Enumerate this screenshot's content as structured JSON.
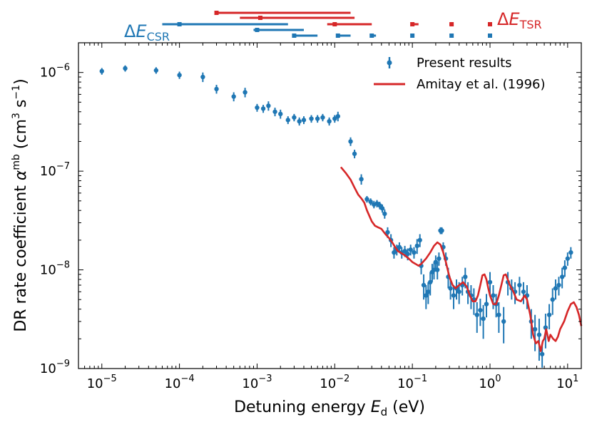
{
  "chart_data": {
    "type": "scatter",
    "xlabel": {
      "prefix": "Detuning energy ",
      "sym": "E",
      "sub": "d",
      "suffix": " (eV)"
    },
    "ylabel": {
      "prefix": "DR rate coefficient ",
      "sym": "α",
      "sup": "mb",
      "units_open": " (cm",
      "units_e1": "3",
      "units_mid": " s",
      "units_e2": "−1",
      "units_close": ")"
    },
    "x_scale": "log",
    "y_scale": "log",
    "xlim": [
      5e-06,
      15
    ],
    "ylim": [
      1e-09,
      2e-06
    ],
    "x_ticks": [
      {
        "value": 1e-05,
        "base": "10",
        "exp": "−5"
      },
      {
        "value": 0.0001,
        "base": "10",
        "exp": "−4"
      },
      {
        "value": 0.001,
        "base": "10",
        "exp": "−3"
      },
      {
        "value": 0.01,
        "base": "10",
        "exp": "−2"
      },
      {
        "value": 0.1,
        "base": "10",
        "exp": "−1"
      },
      {
        "value": 1,
        "base": "10",
        "exp": "0"
      },
      {
        "value": 10,
        "base": "10",
        "exp": "1"
      }
    ],
    "y_ticks": [
      {
        "value": 1e-09,
        "base": "10",
        "exp": "−9"
      },
      {
        "value": 1e-08,
        "base": "10",
        "exp": "−8"
      },
      {
        "value": 1e-07,
        "base": "10",
        "exp": "−7"
      },
      {
        "value": 1e-06,
        "base": "10",
        "exp": "−6"
      }
    ],
    "legend": {
      "position": "top-right",
      "entries": [
        "Present results",
        "Amitay et al. (1996)"
      ]
    },
    "resolution_labels": {
      "csr": {
        "prefix": "Δ",
        "sym": "E",
        "sub": "CSR",
        "color": "#1f77b4"
      },
      "tsr": {
        "prefix": "Δ",
        "sym": "E",
        "sub": "TSR",
        "color": "#d62728"
      }
    },
    "resolution_bars": {
      "tsr": [
        {
          "center": 0.0003,
          "lo": 0.0003,
          "hi": 0.016
        },
        {
          "center": 0.0011,
          "lo": 0.0006,
          "hi": 0.018
        },
        {
          "center": 0.01,
          "lo": 0.008,
          "hi": 0.03
        },
        {
          "center": 0.1,
          "lo": 0.095,
          "hi": 0.12
        },
        {
          "center": 0.32,
          "lo": 0.3,
          "hi": 0.34
        },
        {
          "center": 1.0,
          "lo": 0.97,
          "hi": 1.03
        }
      ],
      "csr": [
        {
          "center": 0.0001,
          "lo": 6e-05,
          "hi": 0.0025
        },
        {
          "center": 0.001,
          "lo": 0.0009,
          "hi": 0.004
        },
        {
          "center": 0.003,
          "lo": 0.0029,
          "hi": 0.006
        },
        {
          "center": 0.011,
          "lo": 0.0105,
          "hi": 0.016
        },
        {
          "center": 0.03,
          "lo": 0.029,
          "hi": 0.034
        },
        {
          "center": 0.1,
          "lo": 0.098,
          "hi": 0.104
        },
        {
          "center": 0.32,
          "lo": 0.315,
          "hi": 0.33
        },
        {
          "center": 1.0,
          "lo": 0.99,
          "hi": 1.02
        }
      ]
    },
    "series": [
      {
        "name": "Present results",
        "kind": "errorbar",
        "color": "#1f77b4",
        "points": [
          [
            1e-05,
            1.03e-06,
            8e-08
          ],
          [
            2e-05,
            1.1e-06,
            8e-08
          ],
          [
            5e-05,
            1.05e-06,
            8e-08
          ],
          [
            0.0001,
            9.4e-07,
            8e-08
          ],
          [
            0.0002,
            9e-07,
            1e-07
          ],
          [
            0.0003,
            6.8e-07,
            7e-08
          ],
          [
            0.0005,
            5.7e-07,
            6e-08
          ],
          [
            0.0007,
            6.3e-07,
            7e-08
          ],
          [
            0.001,
            4.4e-07,
            4e-08
          ],
          [
            0.0012,
            4.3e-07,
            4e-08
          ],
          [
            0.0014,
            4.6e-07,
            5e-08
          ],
          [
            0.0017,
            4e-07,
            4e-08
          ],
          [
            0.002,
            3.8e-07,
            4e-08
          ],
          [
            0.0025,
            3.3e-07,
            3e-08
          ],
          [
            0.003,
            3.5e-07,
            3e-08
          ],
          [
            0.0035,
            3.2e-07,
            3e-08
          ],
          [
            0.004,
            3.3e-07,
            3e-08
          ],
          [
            0.005,
            3.4e-07,
            3e-08
          ],
          [
            0.006,
            3.4e-07,
            3e-08
          ],
          [
            0.007,
            3.5e-07,
            3e-08
          ],
          [
            0.0085,
            3.2e-07,
            3e-08
          ],
          [
            0.01,
            3.4e-07,
            3e-08
          ],
          [
            0.011,
            3.6e-07,
            4e-08
          ],
          [
            0.016,
            2e-07,
            2e-08
          ],
          [
            0.018,
            1.5e-07,
            1.5e-08
          ],
          [
            0.022,
            8.3e-08,
            1e-08
          ],
          [
            0.026,
            5.2e-08,
            4e-09
          ],
          [
            0.029,
            4.9e-08,
            4e-09
          ],
          [
            0.032,
            4.6e-08,
            4e-09
          ],
          [
            0.035,
            4.7e-08,
            4e-09
          ],
          [
            0.038,
            4.5e-08,
            4e-09
          ],
          [
            0.041,
            4.2e-08,
            4e-09
          ],
          [
            0.044,
            3.7e-08,
            4e-09
          ],
          [
            0.048,
            2.4e-08,
            3e-09
          ],
          [
            0.053,
            2e-08,
            3e-09
          ],
          [
            0.058,
            1.5e-08,
            2e-09
          ],
          [
            0.063,
            1.6e-08,
            2e-09
          ],
          [
            0.068,
            1.7e-08,
            2e-09
          ],
          [
            0.073,
            1.5e-08,
            2e-09
          ],
          [
            0.08,
            1.55e-08,
            2e-09
          ],
          [
            0.087,
            1.45e-08,
            2e-09
          ],
          [
            0.095,
            1.6e-08,
            2e-09
          ],
          [
            0.105,
            1.5e-08,
            2e-09
          ],
          [
            0.115,
            1.75e-08,
            3e-09
          ],
          [
            0.125,
            2e-08,
            3e-09
          ],
          [
            0.13,
            1.1e-08,
            2e-09
          ],
          [
            0.14,
            7e-09,
            2e-09
          ],
          [
            0.15,
            5.5e-09,
            1.5e-09
          ],
          [
            0.16,
            6e-09,
            1.5e-09
          ],
          [
            0.17,
            7.5e-09,
            2e-09
          ],
          [
            0.18,
            9.5e-09,
            2e-09
          ],
          [
            0.19,
            1e-08,
            2e-09
          ],
          [
            0.2,
            1.2e-08,
            2e-09
          ],
          [
            0.21,
            1e-08,
            2e-09
          ],
          [
            0.22,
            1.3e-08,
            2e-09
          ],
          [
            0.23,
            2.5e-08,
            2e-09
          ],
          [
            0.24,
            2.5e-08,
            2e-09
          ],
          [
            0.25,
            1.7e-08,
            2e-09
          ],
          [
            0.27,
            1.3e-08,
            2e-09
          ],
          [
            0.29,
            8.5e-09,
            2e-09
          ],
          [
            0.31,
            6.5e-09,
            1.5e-09
          ],
          [
            0.34,
            5.5e-09,
            1.5e-09
          ],
          [
            0.37,
            6.5e-09,
            1.5e-09
          ],
          [
            0.4,
            6e-09,
            1.5e-09
          ],
          [
            0.44,
            7e-09,
            1.5e-09
          ],
          [
            0.48,
            8.5e-09,
            2e-09
          ],
          [
            0.52,
            6e-09,
            1.5e-09
          ],
          [
            0.57,
            5.5e-09,
            1.5e-09
          ],
          [
            0.62,
            5e-09,
            1.5e-09
          ],
          [
            0.68,
            3.5e-09,
            1.2e-09
          ],
          [
            0.75,
            3.9e-09,
            1.2e-09
          ],
          [
            0.82,
            3.2e-09,
            1.2e-09
          ],
          [
            0.9,
            4.5e-09,
            1.2e-09
          ],
          [
            1.0,
            7.5e-09,
            2e-09
          ],
          [
            1.1,
            5.5e-09,
            1.5e-09
          ],
          [
            1.2,
            4.5e-09,
            1.2e-09
          ],
          [
            1.3,
            3.5e-09,
            1.2e-09
          ],
          [
            1.5,
            3e-09,
            1.2e-09
          ],
          [
            1.7,
            7.5e-09,
            2e-09
          ],
          [
            1.9,
            6.5e-09,
            1.5e-09
          ],
          [
            2.1,
            6e-09,
            1.5e-09
          ],
          [
            2.4,
            7e-09,
            1.5e-09
          ],
          [
            2.7,
            6e-09,
            1.5e-09
          ],
          [
            3.0,
            5.5e-09,
            1.5e-09
          ],
          [
            3.4,
            3e-09,
            1e-09
          ],
          [
            3.8,
            2.5e-09,
            1e-09
          ],
          [
            4.3,
            2.2e-09,
            1e-09
          ],
          [
            4.7,
            1.4e-09,
            4e-10
          ],
          [
            5.2,
            2.6e-09,
            1e-09
          ],
          [
            5.8,
            3.5e-09,
            1e-09
          ],
          [
            6.4,
            5e-09,
            1.5e-09
          ],
          [
            7.0,
            6.5e-09,
            1.5e-09
          ],
          [
            7.7,
            7e-09,
            1.5e-09
          ],
          [
            8.5,
            8.5e-09,
            2e-09
          ],
          [
            9.2,
            1.05e-08,
            2e-09
          ],
          [
            10.0,
            1.3e-08,
            2e-09
          ],
          [
            11.0,
            1.5e-08,
            2e-09
          ]
        ]
      },
      {
        "name": "Amitay et al. (1996)",
        "kind": "line",
        "color": "#d62728",
        "points": [
          [
            0.012,
            1.1e-07
          ],
          [
            0.014,
            9.5e-08
          ],
          [
            0.016,
            8.2e-08
          ],
          [
            0.018,
            6.8e-08
          ],
          [
            0.02,
            5.8e-08
          ],
          [
            0.022,
            5.3e-08
          ],
          [
            0.024,
            4.8e-08
          ],
          [
            0.026,
            4e-08
          ],
          [
            0.028,
            3.5e-08
          ],
          [
            0.03,
            3.1e-08
          ],
          [
            0.033,
            2.8e-08
          ],
          [
            0.036,
            2.7e-08
          ],
          [
            0.04,
            2.6e-08
          ],
          [
            0.045,
            2.3e-08
          ],
          [
            0.05,
            2.1e-08
          ],
          [
            0.055,
            1.9e-08
          ],
          [
            0.06,
            1.7e-08
          ],
          [
            0.065,
            1.55e-08
          ],
          [
            0.07,
            1.5e-08
          ],
          [
            0.08,
            1.4e-08
          ],
          [
            0.09,
            1.3e-08
          ],
          [
            0.1,
            1.2e-08
          ],
          [
            0.11,
            1.15e-08
          ],
          [
            0.12,
            1.1e-08
          ],
          [
            0.13,
            1.15e-08
          ],
          [
            0.15,
            1.3e-08
          ],
          [
            0.17,
            1.5e-08
          ],
          [
            0.19,
            1.75e-08
          ],
          [
            0.21,
            1.9e-08
          ],
          [
            0.23,
            1.8e-08
          ],
          [
            0.25,
            1.5e-08
          ],
          [
            0.27,
            1.2e-08
          ],
          [
            0.3,
            8.5e-09
          ],
          [
            0.33,
            7e-09
          ],
          [
            0.36,
            6.5e-09
          ],
          [
            0.4,
            7e-09
          ],
          [
            0.45,
            7.5e-09
          ],
          [
            0.5,
            6.8e-09
          ],
          [
            0.55,
            5.5e-09
          ],
          [
            0.6,
            4.8e-09
          ],
          [
            0.65,
            4.8e-09
          ],
          [
            0.7,
            5.5e-09
          ],
          [
            0.75,
            7e-09
          ],
          [
            0.8,
            8.8e-09
          ],
          [
            0.85,
            9e-09
          ],
          [
            0.9,
            8e-09
          ],
          [
            0.95,
            6.5e-09
          ],
          [
            1.0,
            5.5e-09
          ],
          [
            1.1,
            4.5e-09
          ],
          [
            1.2,
            4.5e-09
          ],
          [
            1.3,
            5.5e-09
          ],
          [
            1.4,
            7e-09
          ],
          [
            1.5,
            8.8e-09
          ],
          [
            1.6,
            9e-09
          ],
          [
            1.8,
            7e-09
          ],
          [
            2.0,
            6e-09
          ],
          [
            2.2,
            5e-09
          ],
          [
            2.5,
            4.8e-09
          ],
          [
            2.8,
            5.5e-09
          ],
          [
            3.0,
            5e-09
          ],
          [
            3.3,
            3.5e-09
          ],
          [
            3.6,
            2.2e-09
          ],
          [
            3.9,
            1.8e-09
          ],
          [
            4.2,
            1.9e-09
          ],
          [
            4.5,
            1.5e-09
          ],
          [
            4.8,
            1.9e-09
          ],
          [
            5.0,
            2e-09
          ],
          [
            5.3,
            2.5e-09
          ],
          [
            5.7,
            1.9e-09
          ],
          [
            6.0,
            2.2e-09
          ],
          [
            6.5,
            2e-09
          ],
          [
            7.0,
            1.9e-09
          ],
          [
            7.5,
            2.1e-09
          ],
          [
            8.0,
            2.5e-09
          ],
          [
            9.0,
            3e-09
          ],
          [
            10.0,
            3.8e-09
          ],
          [
            11.0,
            4.5e-09
          ],
          [
            12.0,
            4.7e-09
          ],
          [
            13.0,
            4.2e-09
          ],
          [
            14.0,
            3.5e-09
          ],
          [
            15.0,
            2.7e-09
          ]
        ]
      }
    ]
  }
}
